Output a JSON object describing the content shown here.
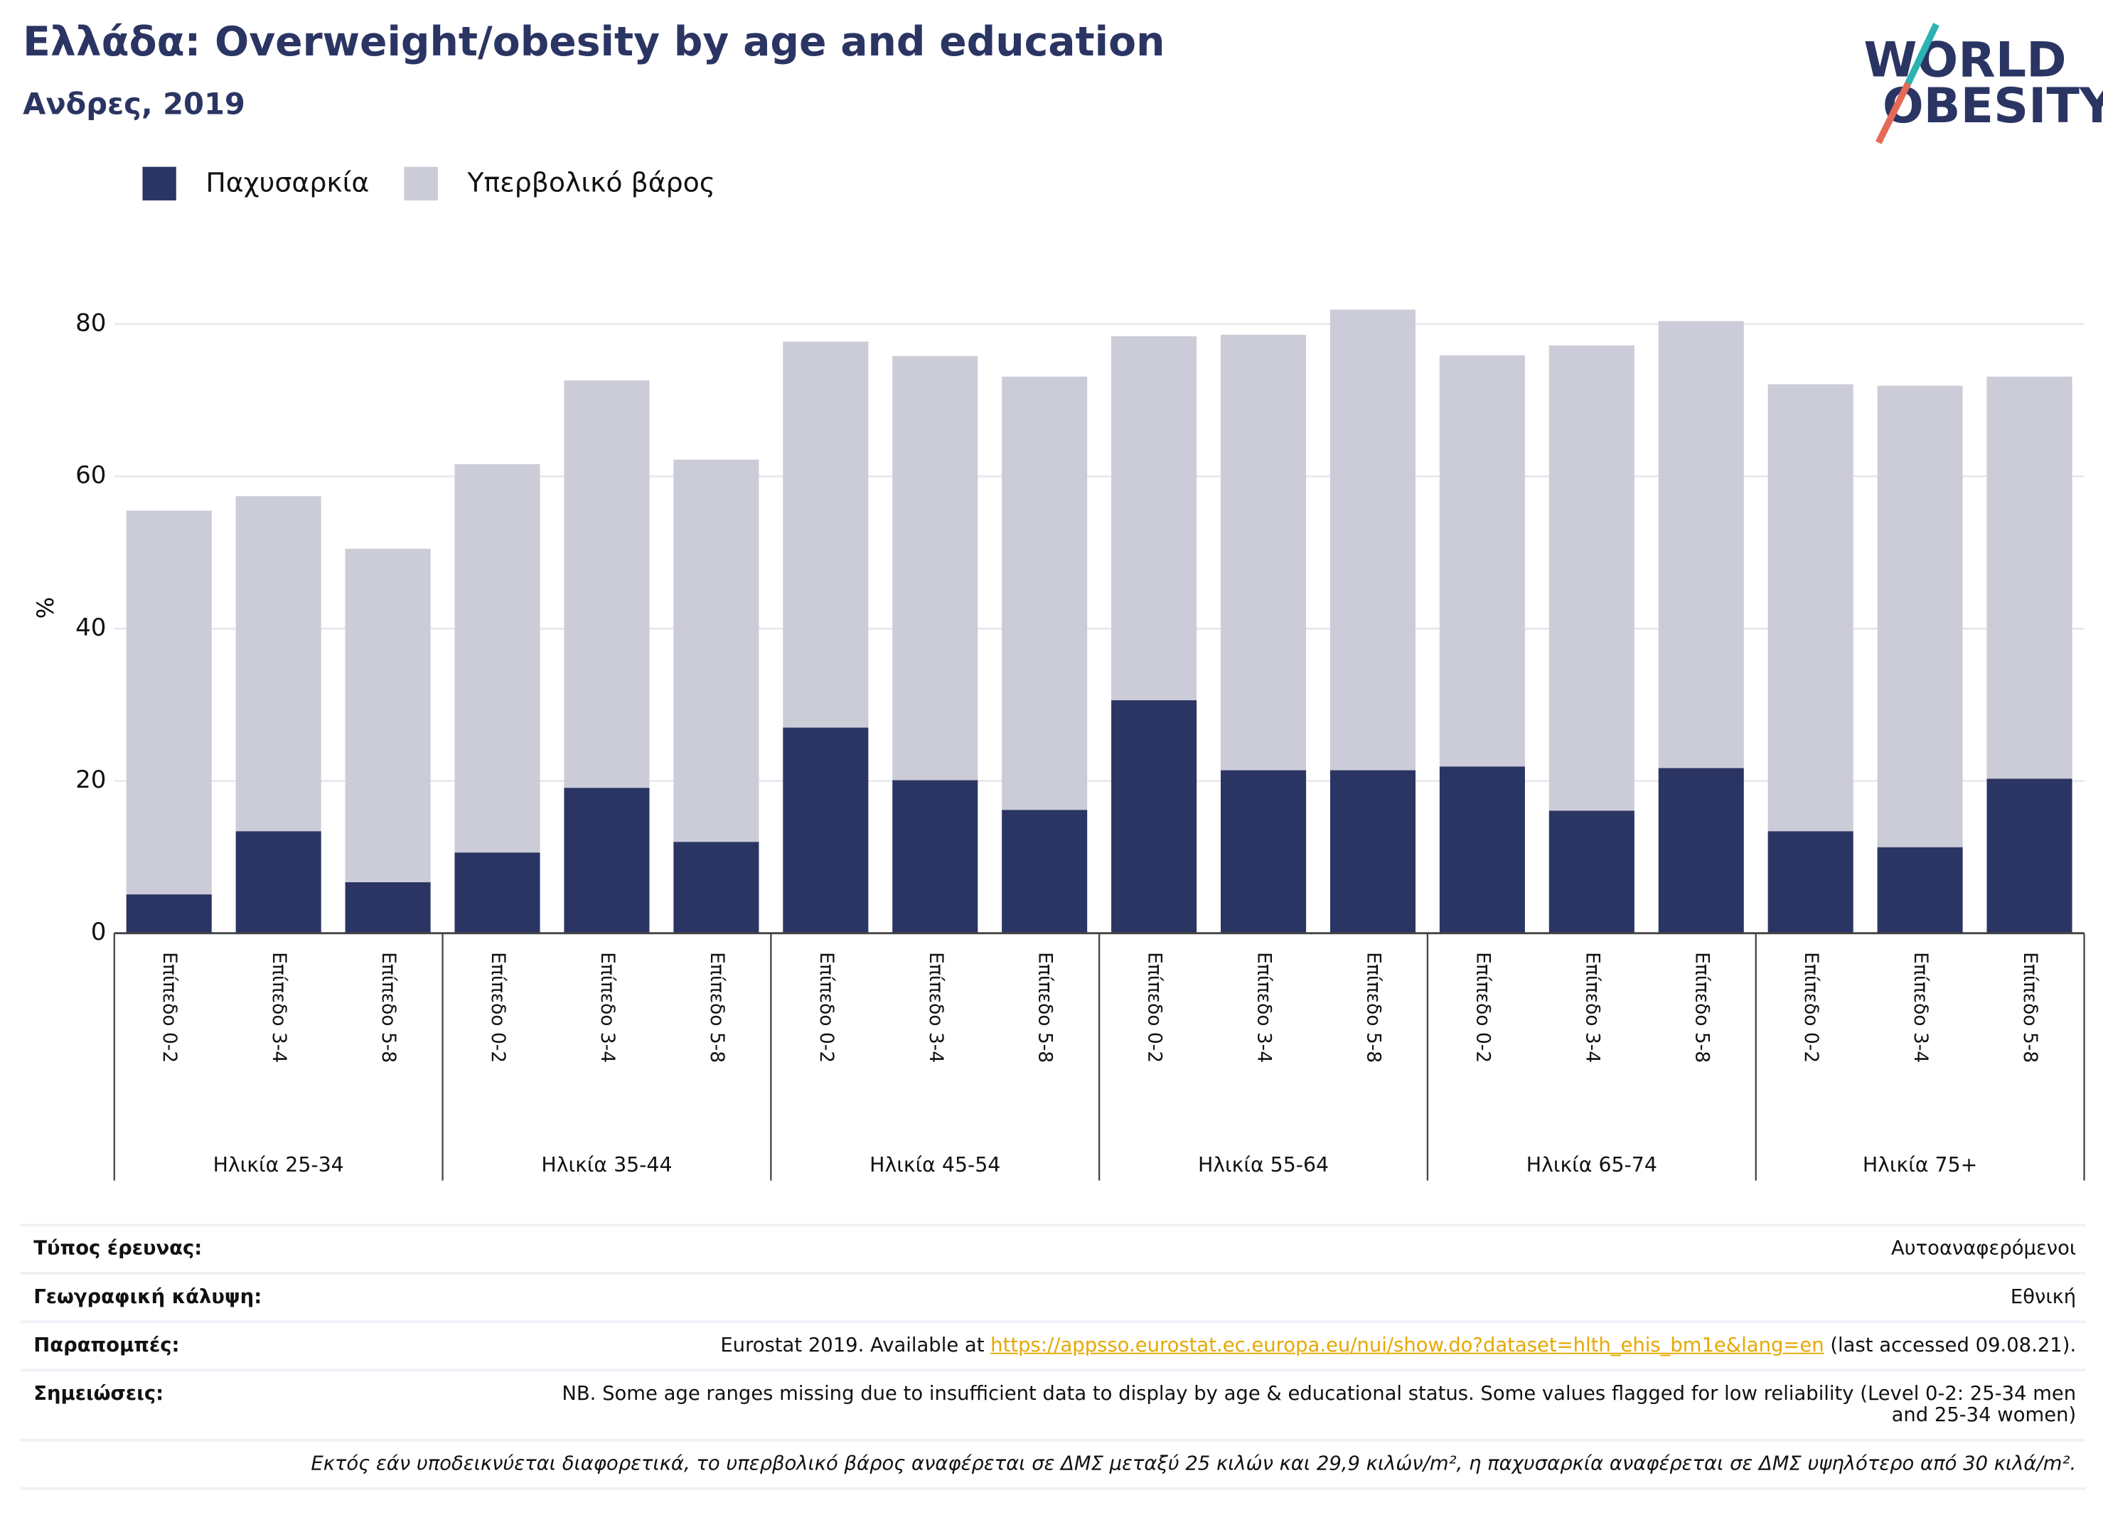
{
  "chart_data": {
    "type": "stacked_bar",
    "title": "Ελλάδα: Overweight/obesity by age and education",
    "subtitle": "Ανδρες, 2019",
    "logo": [
      "WORLD",
      "OBESITY"
    ],
    "y_label": "%",
    "groups": [
      {
        "name": "Ηλικία 25-34",
        "categories": [
          "Επίπεδο 0-2",
          "Επίπεδο 3-4",
          "Επίπεδο 5-8"
        ]
      },
      {
        "name": "Ηλικία 35-44",
        "categories": [
          "Επίπεδο 0-2",
          "Επίπεδο 3-4",
          "Επίπεδο 5-8"
        ]
      },
      {
        "name": "Ηλικία 45-54",
        "categories": [
          "Επίπεδο 0-2",
          "Επίπεδο 3-4",
          "Επίπεδο 5-8"
        ]
      },
      {
        "name": "Ηλικία 55-64",
        "categories": [
          "Επίπεδο 0-2",
          "Επίπεδο 3-4",
          "Επίπεδο 5-8"
        ]
      },
      {
        "name": "Ηλικία 65-74",
        "categories": [
          "Επίπεδο 0-2",
          "Επίπεδο 3-4",
          "Επίπεδο 5-8"
        ]
      },
      {
        "name": "Ηλικία 75+",
        "categories": [
          "Επίπεδο 0-2",
          "Επίπεδο 3-4",
          "Επίπεδο 5-8"
        ]
      }
    ],
    "series": [
      {
        "name": "Παχυσαρκία",
        "color": "#2b3563",
        "values": [
          5.1,
          13.4,
          6.7,
          10.6,
          19.1,
          12.0,
          27.0,
          20.1,
          16.2,
          30.6,
          21.4,
          21.4,
          21.9,
          16.1,
          21.7,
          13.4,
          11.3,
          20.3
        ]
      },
      {
        "name": "Υπερβολικό βάρος",
        "color": "#cbccd8",
        "values": [
          50.4,
          44.0,
          43.8,
          51.0,
          53.5,
          50.2,
          50.7,
          55.7,
          56.9,
          47.8,
          57.2,
          60.5,
          54.0,
          61.1,
          58.7,
          58.7,
          60.6,
          52.8
        ]
      }
    ],
    "ylim": [
      0,
      86
    ],
    "yticks": [
      0,
      20,
      40,
      60,
      80
    ],
    "grid": true,
    "legend": "top-left"
  },
  "footer": {
    "rows": [
      {
        "label": "Τύπος έρευνας:",
        "value": "Αυτοαναφερόμενοι"
      },
      {
        "label": "Γεωγραφική κάλυψη:",
        "value": "Εθνική"
      }
    ],
    "reference": {
      "label": "Παραπομπές:",
      "before": "Eurostat 2019. Available at ",
      "link": "https://appsso.eurostat.ec.europa.eu/nui/show.do?dataset=hlth_ehis_bm1e&lang=en",
      "after": " (last accessed 09.08.21)."
    },
    "notes": {
      "label": "Σημειώσεις:",
      "value": "NB. Some age ranges missing due to insufficient data to display by age & educational status. Some values flagged for low reliability (Level 0-2: 25-34 men and 25-34 women)"
    },
    "definition": "Εκτός εάν υποδεικνύεται διαφορετικά, το υπερβολικό βάρος αναφέρεται σε ΔΜΣ μεταξύ 25 κιλών και 29,9 κιλών/m², η παχυσαρκία αναφέρεται σε ΔΜΣ υψηλότερο από 30 κιλά/m²."
  }
}
